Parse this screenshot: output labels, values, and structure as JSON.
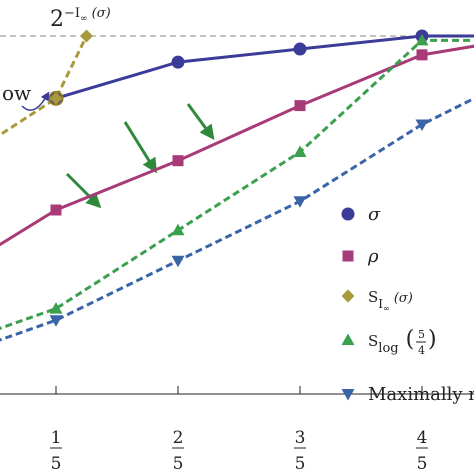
{
  "chart_data": {
    "type": "line",
    "title": "",
    "xlabel": "",
    "ylabel": "",
    "xlim": [
      -0.07,
      0.85
    ],
    "ylim": [
      -0.2,
      1.0
    ],
    "grid": false,
    "legend_position": "right",
    "x_ticks": [
      {
        "value": 0.2,
        "num": "1",
        "den": "5"
      },
      {
        "value": 0.4,
        "num": "2",
        "den": "5"
      },
      {
        "value": 0.6,
        "num": "3",
        "den": "5"
      },
      {
        "value": 0.8,
        "num": "4",
        "den": "5"
      }
    ],
    "reference_line": {
      "y": 1.0,
      "label": "2^{-I∞(σ)}"
    },
    "series": [
      {
        "name": "σ",
        "color": "#3b3b9a",
        "marker": "circle",
        "dash": false,
        "x": [
          0.2,
          0.4,
          0.6,
          0.8,
          0.9
        ],
        "y": [
          0.785,
          0.91,
          0.955,
          1.0,
          1.0
        ]
      },
      {
        "name": "ρ",
        "color": "#a83a78",
        "marker": "square",
        "dash": false,
        "x": [
          -0.07,
          0.2,
          0.4,
          0.6,
          0.8,
          0.9
        ],
        "y": [
          0.05,
          0.4,
          0.57,
          0.76,
          0.935,
          0.97
        ]
      },
      {
        "name": "S_{I∞(σ)}",
        "color": "#a89a3c",
        "marker": "diamond",
        "dash": true,
        "x": [
          -0.07,
          0.2,
          0.25
        ],
        "y": [
          0.415,
          0.785,
          1.0
        ]
      },
      {
        "name": "S_{log(5/4)}",
        "color": "#3aa04e",
        "marker": "triangle-up",
        "dash": true,
        "x": [
          -0.07,
          0.2,
          0.4,
          0.6,
          0.8,
          0.9
        ],
        "y": [
          -0.14,
          0.06,
          0.33,
          0.6,
          0.985,
          0.985
        ]
      },
      {
        "name": "Maximally m",
        "color": "#3a64a8",
        "marker": "triangle-down",
        "dash": true,
        "x": [
          -0.07,
          0.2,
          0.4,
          0.6,
          0.8,
          0.9
        ],
        "y": [
          -0.18,
          0.02,
          0.225,
          0.43,
          0.695,
          0.8
        ]
      }
    ],
    "annotations": [
      {
        "text": "ow",
        "target_x": 0.2,
        "target_y": 0.785
      }
    ],
    "flow_arrow_color": "#2e8a3a"
  }
}
